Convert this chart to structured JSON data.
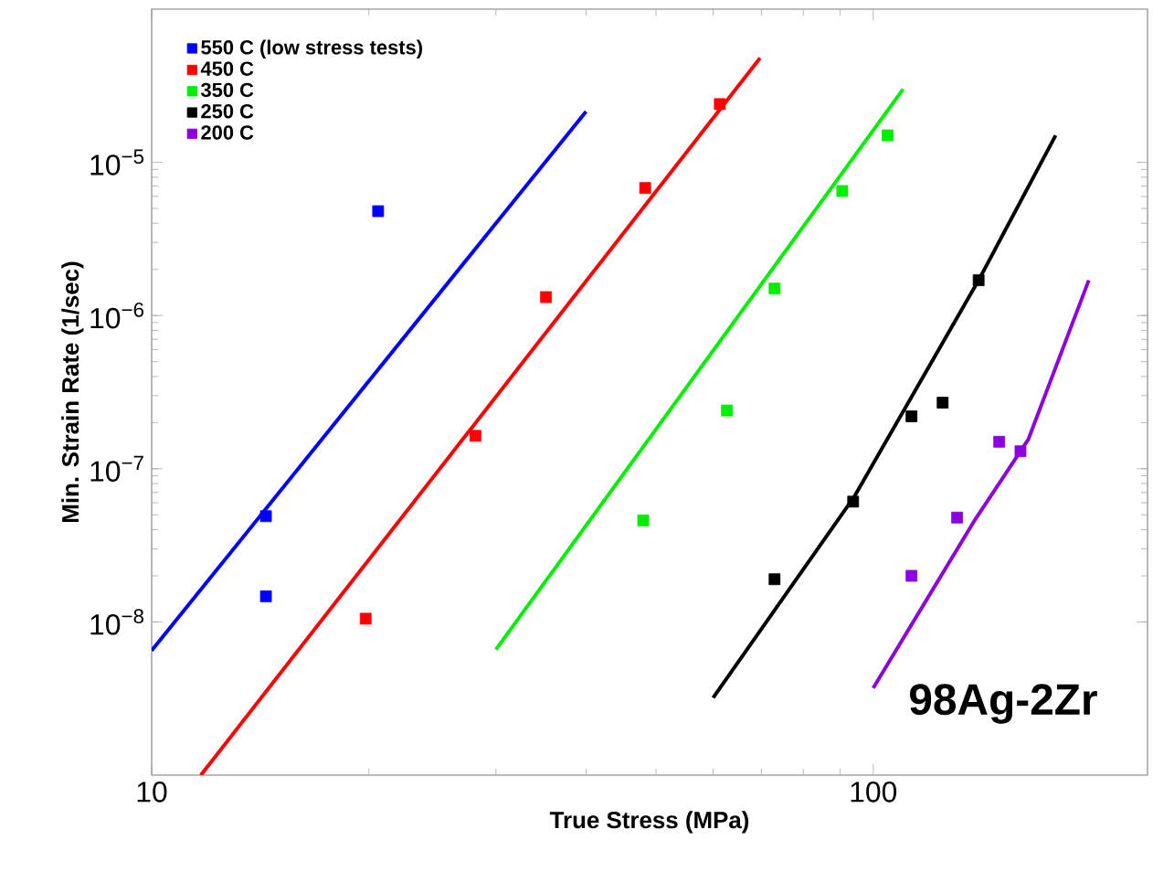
{
  "chart_data": {
    "type": "scatter",
    "xlabel": "True Stress  (MPa)",
    "ylabel": "Min. Strain Rate  (1/sec)",
    "log": "xy",
    "xlim": [
      10,
      240
    ],
    "ylim": [
      1e-09,
      0.0001
    ],
    "xticks": [
      10,
      100
    ],
    "yticks": [
      {
        "value": 1e-08,
        "label": "10$^{−8}$"
      },
      {
        "value": 1e-07,
        "label": "10$^{−7}$"
      },
      {
        "value": 1e-06,
        "label": "10$^{−6}$"
      },
      {
        "value": 1e-05,
        "label": "10$^{−5}$"
      }
    ],
    "marker": "square",
    "legend": "top left",
    "grid": false,
    "annotations": [
      "98Ag-2Zr"
    ],
    "series": [
      {
        "name": "550 C (low stress tests)",
        "color": "#0000ff",
        "x": [
          20.6,
          14.4,
          14.4
        ],
        "values": [
          4.8e-06,
          4.9e-08,
          1.47e-08
        ]
      },
      {
        "name": "450 C",
        "color": "#ff0000",
        "x": [
          19.8,
          28.1,
          35.2,
          48.3,
          61.3
        ],
        "values": [
          1.05e-08,
          1.64e-07,
          1.32e-06,
          6.8e-06,
          2.4e-05
        ]
      },
      {
        "name": "350 C",
        "color": "#00ee00",
        "x": [
          48,
          62.7,
          73,
          90.6,
          104.7
        ],
        "values": [
          4.6e-08,
          2.4e-07,
          1.5e-06,
          6.5e-06,
          1.5e-05
        ]
      },
      {
        "name": "250 C",
        "color": "#000000",
        "x": [
          73,
          93.8,
          113,
          124.8,
          140
        ],
        "values": [
          1.9e-08,
          6.1e-08,
          2.2e-07,
          2.7e-07,
          1.7e-06
        ]
      },
      {
        "name": "200 C",
        "color": "#8c00e0",
        "x": [
          113,
          130.7,
          149.5,
          160
        ],
        "values": [
          2e-08,
          4.8e-08,
          1.5e-07,
          1.3e-07
        ]
      },
      {
        "type": "line",
        "marker": "none",
        "color": "#0000ff",
        "x": [
          10,
          40
        ],
        "values": [
          6.5e-09,
          2.15e-05
        ]
      },
      {
        "type": "line",
        "marker": "none",
        "color": "#ff0000",
        "x": [
          11.7,
          69.7
        ],
        "values": [
          1e-09,
          4.8e-05
        ]
      },
      {
        "type": "line",
        "marker": "none",
        "color": "#00ee00",
        "x": [
          30,
          110
        ],
        "values": [
          6.6e-09,
          3e-05
        ]
      },
      {
        "type": "line",
        "marker": "none",
        "color": "#000000",
        "x": [
          60,
          94,
          140,
          179
        ],
        "values": [
          3.2e-09,
          6.5e-08,
          1.7e-06,
          1.5e-05
        ]
      },
      {
        "type": "line",
        "marker": "none",
        "color": "#8c00e0",
        "x": [
          100,
          137.8,
          164,
          199
        ],
        "values": [
          3.7e-09,
          4.5e-08,
          1.55e-07,
          1.7e-06
        ]
      }
    ]
  }
}
